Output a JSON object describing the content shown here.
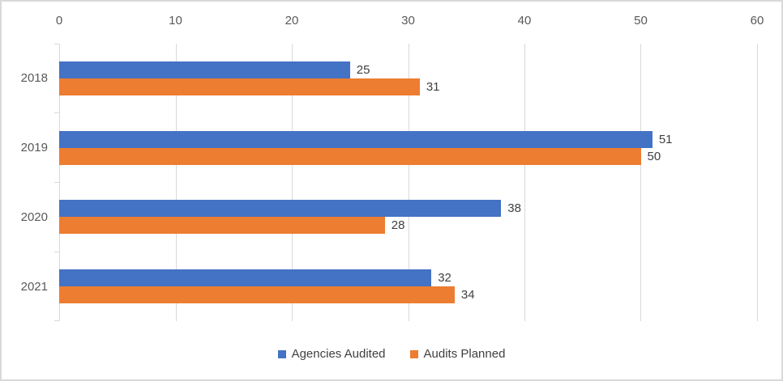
{
  "chart_data": {
    "type": "bar",
    "orientation": "horizontal",
    "title": "",
    "categories": [
      "2018",
      "2019",
      "2020",
      "2021"
    ],
    "series": [
      {
        "name": "Agencies Audited",
        "color": "#4472C4",
        "values": [
          25,
          51,
          38,
          32
        ]
      },
      {
        "name": "Audits Planned",
        "color": "#ED7D31",
        "values": [
          31,
          50,
          28,
          34
        ]
      }
    ],
    "x_axis": {
      "position": "top",
      "min": 0,
      "max": 60,
      "ticks": [
        0,
        10,
        20,
        30,
        40,
        50,
        60
      ]
    },
    "grid": true,
    "data_labels": true,
    "legend_position": "bottom",
    "colors": {
      "gridline": "#d9d9d9",
      "axis_text": "#595959",
      "label_text": "#404040",
      "border": "#d9d9d9"
    }
  }
}
